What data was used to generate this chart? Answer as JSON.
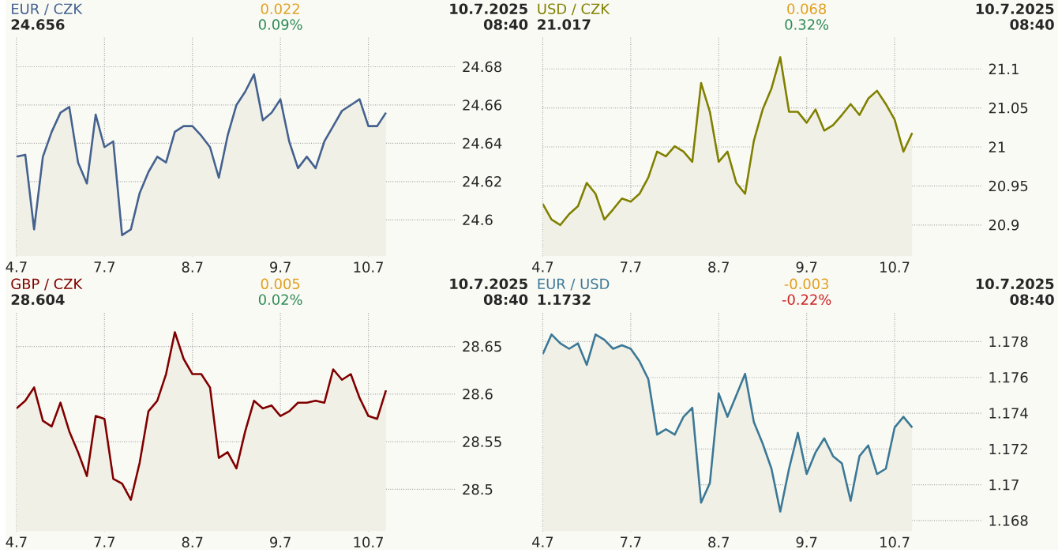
{
  "chart_data": [
    {
      "type": "area",
      "title": "EUR / CZK",
      "subtitle": "24.656",
      "annotations": [
        "0.022",
        "0.09%",
        "10.7.2025",
        "08:40"
      ],
      "categories": [
        "4.7",
        null,
        null,
        null,
        null,
        null,
        null,
        null,
        null,
        null,
        "7.7",
        null,
        null,
        null,
        null,
        null,
        null,
        null,
        null,
        null,
        "8.7",
        null,
        null,
        null,
        null,
        null,
        null,
        null,
        null,
        null,
        "9.7",
        null,
        null,
        null,
        null,
        null,
        null,
        null,
        null,
        null,
        "10.7",
        null,
        null,
        null,
        null,
        null,
        null,
        null,
        null,
        null
      ],
      "ylim": [
        24.581,
        24.696
      ],
      "yticks": [
        24.6,
        24.62,
        24.64,
        24.66,
        24.68
      ],
      "grid": true,
      "series": [
        {
          "color": "#44618f",
          "values": [
            24.633,
            24.634,
            24.595,
            24.633,
            24.646,
            24.656,
            24.659,
            24.63,
            24.619,
            24.655,
            24.638,
            24.641,
            24.592,
            24.595,
            24.614,
            24.625,
            24.633,
            24.63,
            24.646,
            24.649,
            24.649,
            24.644,
            24.638,
            24.622,
            24.644,
            24.66,
            24.667,
            24.676,
            24.652,
            24.656,
            24.663,
            24.641,
            24.627,
            24.633,
            24.627,
            24.641,
            24.649,
            24.657,
            24.66,
            24.663,
            24.649,
            24.649,
            24.656,
            null,
            null,
            null,
            null,
            null,
            null,
            null
          ]
        }
      ]
    },
    {
      "type": "area",
      "title": "USD / CZK",
      "subtitle": "21.017",
      "annotations": [
        "0.068",
        "0.32%",
        "10.7.2025",
        "08:40"
      ],
      "categories": [
        "4.7",
        null,
        null,
        null,
        null,
        null,
        null,
        null,
        null,
        null,
        "7.7",
        null,
        null,
        null,
        null,
        null,
        null,
        null,
        null,
        null,
        "8.7",
        null,
        null,
        null,
        null,
        null,
        null,
        null,
        null,
        null,
        "9.7",
        null,
        null,
        null,
        null,
        null,
        null,
        null,
        null,
        null,
        "10.7",
        null,
        null,
        null,
        null,
        null,
        null,
        null,
        null,
        null
      ],
      "ylim": [
        20.86,
        21.142
      ],
      "yticks": [
        20.9,
        20.95,
        21,
        21.05,
        21.1
      ],
      "grid": true,
      "series": [
        {
          "color": "#808000",
          "values": [
            20.927,
            20.907,
            20.9,
            20.914,
            20.924,
            20.954,
            20.94,
            20.907,
            20.92,
            20.934,
            20.93,
            20.94,
            20.961,
            20.994,
            20.988,
            21.001,
            20.994,
            20.981,
            21.082,
            21.045,
            20.981,
            20.994,
            20.954,
            20.94,
            21.008,
            21.048,
            21.075,
            21.115,
            21.045,
            21.045,
            21.031,
            21.048,
            21.021,
            21.028,
            21.041,
            21.055,
            21.041,
            21.062,
            21.072,
            21.055,
            21.035,
            20.994,
            21.018,
            null,
            null,
            null,
            null,
            null,
            null,
            null
          ]
        }
      ]
    },
    {
      "type": "area",
      "title": "GBP / CZK",
      "subtitle": "28.604",
      "annotations": [
        "0.005",
        "0.02%",
        "10.7.2025",
        "08:40"
      ],
      "categories": [
        "4.7",
        null,
        null,
        null,
        null,
        null,
        null,
        null,
        null,
        null,
        "7.7",
        null,
        null,
        null,
        null,
        null,
        null,
        null,
        null,
        null,
        "8.7",
        null,
        null,
        null,
        null,
        null,
        null,
        null,
        null,
        null,
        "9.7",
        null,
        null,
        null,
        null,
        null,
        null,
        null,
        null,
        null,
        "10.7",
        null,
        null,
        null,
        null,
        null,
        null,
        null,
        null,
        null
      ],
      "ylim": [
        28.456,
        28.687
      ],
      "yticks": [
        28.5,
        28.55,
        28.6,
        28.65
      ],
      "grid": true,
      "series": [
        {
          "color": "#800000",
          "values": [
            28.585,
            28.593,
            28.607,
            28.572,
            28.566,
            28.591,
            28.561,
            28.539,
            28.514,
            28.577,
            28.574,
            28.511,
            28.506,
            28.489,
            28.528,
            28.582,
            28.593,
            28.621,
            28.665,
            28.637,
            28.621,
            28.621,
            28.607,
            28.533,
            28.539,
            28.522,
            28.561,
            28.593,
            28.585,
            28.588,
            28.577,
            28.582,
            28.591,
            28.591,
            28.593,
            28.591,
            28.626,
            28.615,
            28.621,
            28.596,
            28.577,
            28.574,
            28.604,
            null,
            null,
            null,
            null,
            null,
            null,
            null
          ]
        }
      ]
    },
    {
      "type": "area",
      "title": "EUR / USD",
      "subtitle": "1.1732",
      "annotations": [
        "-0.003",
        "-0.22%",
        "10.7.2025",
        "08:40"
      ],
      "categories": [
        "4.7",
        null,
        null,
        null,
        null,
        null,
        null,
        null,
        null,
        null,
        "7.7",
        null,
        null,
        null,
        null,
        null,
        null,
        null,
        null,
        null,
        "8.7",
        null,
        null,
        null,
        null,
        null,
        null,
        null,
        null,
        null,
        "9.7",
        null,
        null,
        null,
        null,
        null,
        null,
        null,
        null,
        null,
        "10.7",
        null,
        null,
        null,
        null,
        null,
        null,
        null,
        null,
        null
      ],
      "ylim": [
        1.1674,
        1.1797
      ],
      "yticks": [
        1.168,
        1.17,
        1.172,
        1.174,
        1.176,
        1.178
      ],
      "grid": true,
      "series": [
        {
          "color": "#3b7896",
          "values": [
            1.1773,
            1.1784,
            1.1779,
            1.1776,
            1.1779,
            1.1767,
            1.1784,
            1.1781,
            1.1776,
            1.1778,
            1.1776,
            1.1769,
            1.1759,
            1.1728,
            1.1731,
            1.1728,
            1.1738,
            1.1743,
            1.169,
            1.1701,
            1.1751,
            1.1738,
            1.175,
            1.1762,
            1.1735,
            1.1723,
            1.1709,
            1.1685,
            1.1709,
            1.1729,
            1.1706,
            1.1718,
            1.1726,
            1.1716,
            1.1712,
            1.1691,
            1.1716,
            1.1722,
            1.1706,
            1.1709,
            1.1732,
            1.1738,
            1.1732,
            null,
            null,
            null,
            null,
            null,
            null,
            null
          ]
        }
      ]
    }
  ]
}
